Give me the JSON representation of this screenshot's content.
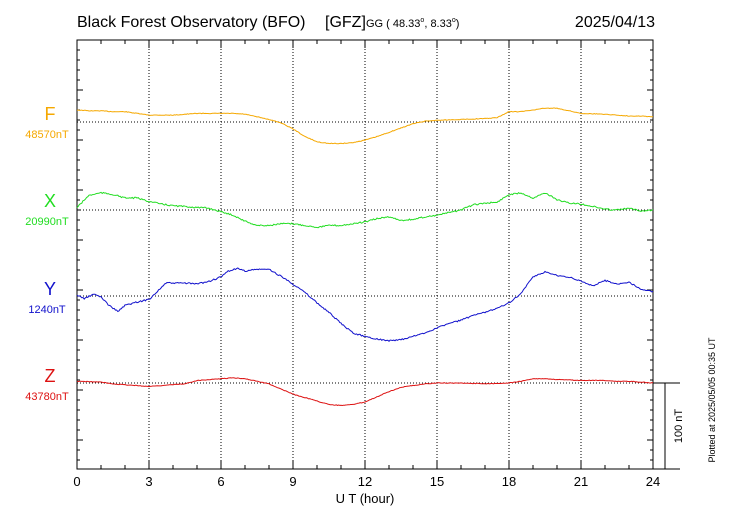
{
  "header": {
    "observatory": "Black Forest Observatory (BFO)",
    "institute": "[GFZ]",
    "coord_prefix": "GG ( 48.33",
    "coord_sep": ",   8.33",
    "coord_suffix": ")",
    "degree_mark": "o",
    "date": "2025/04/13"
  },
  "plotted_note": "Plotted at 2025/05/05 00:35 UT",
  "scale_label": "100 nT",
  "chart_data": {
    "type": "line",
    "xlabel": "U T (hour)",
    "xlim": [
      0,
      24
    ],
    "xticks": [
      0,
      3,
      6,
      9,
      12,
      15,
      18,
      21,
      24
    ],
    "xtick_labels": [
      "0",
      "3",
      "6",
      "9",
      "12",
      "15",
      "18",
      "21",
      "24"
    ],
    "grid": true,
    "offset_scale_nT": 100,
    "series": [
      {
        "name": "F",
        "baseline_label": "48570nT",
        "color": "#f5a800",
        "baseline_nT": 48570,
        "hours": [
          0,
          0.5,
          1,
          1.5,
          2,
          2.5,
          3,
          4,
          5,
          6,
          6.5,
          7,
          7.5,
          8,
          8.5,
          9,
          9.5,
          10,
          10.5,
          11,
          11.5,
          12,
          12.5,
          13,
          13.5,
          14,
          14.5,
          15,
          16,
          17,
          17.5,
          18,
          18.5,
          19,
          19.5,
          20,
          20.5,
          21,
          22,
          23,
          23.5,
          24
        ],
        "values": [
          48584,
          48583,
          48583,
          48582,
          48582,
          48580,
          48578,
          48578,
          48580,
          48580,
          48580,
          48579,
          48576,
          48573,
          48569,
          48562,
          48553,
          48547,
          48545,
          48545,
          48546,
          48549,
          48553,
          48558,
          48563,
          48568,
          48571,
          48572,
          48573,
          48574,
          48575,
          48582,
          48582,
          48584,
          48586,
          48586,
          48583,
          48580,
          48579,
          48577,
          48577,
          48576
        ]
      },
      {
        "name": "X",
        "baseline_label": "20990nT",
        "color": "#22dd22",
        "baseline_nT": 20990,
        "hours": [
          0,
          0.5,
          1,
          1.5,
          2,
          2.5,
          3,
          3.5,
          4,
          4.5,
          5,
          5.5,
          6,
          6.5,
          7,
          7.5,
          8,
          8.5,
          9,
          9.5,
          10,
          10.5,
          11,
          11.5,
          12,
          12.5,
          13,
          13.5,
          14,
          14.5,
          15,
          15.5,
          16,
          16.5,
          17,
          17.5,
          18,
          18.5,
          19,
          19.5,
          20,
          20.5,
          21,
          21.5,
          22,
          22.5,
          23,
          23.5,
          24
        ],
        "values": [
          20993,
          21007,
          21010,
          21008,
          21004,
          21004,
          21000,
          20997,
          20995,
          20994,
          20993,
          20992,
          20988,
          20984,
          20977,
          20972,
          20972,
          20974,
          20974,
          20972,
          20970,
          20972,
          20972,
          20974,
          20976,
          20980,
          20982,
          20978,
          20979,
          20982,
          20984,
          20987,
          20990,
          20996,
          20998,
          20999,
          21008,
          21010,
          21004,
          21010,
          21002,
          20998,
          20997,
          20994,
          20991,
          20990,
          20992,
          20989,
          20990
        ]
      },
      {
        "name": "Y",
        "baseline_label": "1240nT",
        "color": "#1111cc",
        "baseline_nT": 1240,
        "hours": [
          0,
          0.3,
          0.7,
          1,
          1.3,
          1.7,
          2,
          2.5,
          3,
          3.3,
          3.7,
          4,
          4.5,
          5,
          5.5,
          6,
          6.3,
          6.7,
          7,
          7.5,
          8,
          8.5,
          9,
          9.5,
          10,
          10.5,
          11,
          11.5,
          12,
          12.5,
          13,
          13.5,
          14,
          14.5,
          15,
          15.5,
          16,
          16.5,
          17,
          17.5,
          18,
          18.5,
          19,
          19.5,
          20,
          20.5,
          21,
          21.5,
          22,
          22.5,
          23,
          23.5,
          24
        ],
        "values": [
          1241,
          1237,
          1242,
          1239,
          1230,
          1222,
          1229,
          1233,
          1236,
          1244,
          1255,
          1255,
          1255,
          1254,
          1257,
          1262,
          1269,
          1272,
          1269,
          1271,
          1271,
          1263,
          1254,
          1244,
          1232,
          1221,
          1208,
          1197,
          1193,
          1190,
          1188,
          1189,
          1193,
          1197,
          1203,
          1208,
          1212,
          1217,
          1221,
          1226,
          1232,
          1243,
          1262,
          1268,
          1264,
          1262,
          1257,
          1252,
          1258,
          1254,
          1256,
          1248,
          1245
        ]
      },
      {
        "name": "Z",
        "baseline_label": "43780nT",
        "color": "#dd1111",
        "baseline_nT": 43780,
        "hours": [
          0,
          1,
          1.5,
          2,
          3,
          4,
          4.5,
          5,
          6,
          6.5,
          7,
          7.5,
          8,
          8.5,
          9,
          9.5,
          10,
          10.5,
          11,
          11.5,
          12,
          12.5,
          13,
          13.5,
          14,
          14.5,
          15,
          16,
          17,
          18,
          18.5,
          19,
          19.5,
          20,
          21,
          22,
          22.5,
          23,
          24
        ],
        "values": [
          43782,
          43781,
          43779,
          43778,
          43776,
          43778,
          43779,
          43783,
          43785,
          43786,
          43785,
          43782,
          43779,
          43773,
          43767,
          43763,
          43759,
          43755,
          43754,
          43755,
          43758,
          43764,
          43770,
          43775,
          43777,
          43779,
          43780,
          43780,
          43779,
          43780,
          43782,
          43785,
          43785,
          43784,
          43783,
          43783,
          43782,
          43782,
          43780
        ]
      }
    ]
  }
}
